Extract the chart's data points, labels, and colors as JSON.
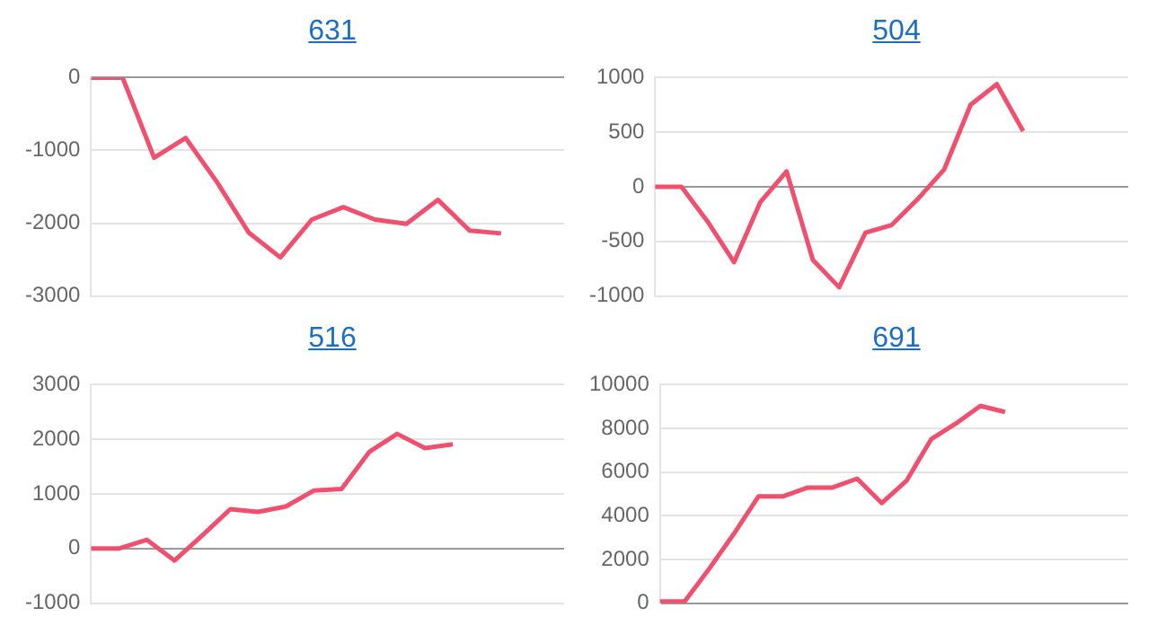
{
  "chart_data": [
    {
      "type": "line",
      "title": "631",
      "categories": [
        null,
        null,
        null,
        null,
        null,
        null,
        null,
        null,
        null,
        null,
        null,
        null,
        null,
        null,
        null,
        null
      ],
      "series": [
        {
          "color": "#f0506e",
          "values": [
            0,
            0,
            -1100,
            -830,
            -1440,
            -2130,
            -2470,
            -1950,
            -1780,
            -1950,
            -2010,
            -1680,
            -2100,
            -2140,
            null,
            null
          ]
        }
      ],
      "ylim": [
        -3000,
        0
      ],
      "yticks": [
        -3000,
        -2000,
        -1000,
        0
      ],
      "grid": "y",
      "legend": false,
      "tick_labels": "y",
      "marker": "none"
    },
    {
      "type": "line",
      "title": "504",
      "categories": [
        null,
        null,
        null,
        null,
        null,
        null,
        null,
        null,
        null,
        null,
        null,
        null,
        null,
        null,
        null,
        null,
        null,
        null,
        null
      ],
      "series": [
        {
          "color": "#f0506e",
          "values": [
            0,
            0,
            -320,
            -690,
            -140,
            140,
            -670,
            -920,
            -420,
            -350,
            -110,
            160,
            750,
            940,
            510,
            null,
            null,
            null,
            null
          ]
        }
      ],
      "ylim": [
        -1000,
        1000
      ],
      "yticks": [
        -1000,
        -500,
        0,
        500,
        1000
      ],
      "grid": "y",
      "legend": false,
      "tick_labels": "y",
      "marker": "none"
    },
    {
      "type": "line",
      "title": "516",
      "categories": [
        null,
        null,
        null,
        null,
        null,
        null,
        null,
        null,
        null,
        null,
        null,
        null,
        null,
        null,
        null,
        null,
        null,
        null
      ],
      "series": [
        {
          "color": "#f0506e",
          "values": [
            0,
            0,
            160,
            -220,
            240,
            720,
            670,
            770,
            1060,
            1090,
            1770,
            2100,
            1840,
            1910,
            null,
            null,
            null,
            null
          ]
        }
      ],
      "ylim": [
        -1000,
        3000
      ],
      "yticks": [
        -1000,
        0,
        1000,
        2000,
        3000
      ],
      "grid": "y",
      "legend": false,
      "tick_labels": "y",
      "marker": "none"
    },
    {
      "type": "line",
      "title": "691",
      "categories": [
        null,
        null,
        null,
        null,
        null,
        null,
        null,
        null,
        null,
        null,
        null,
        null,
        null,
        null,
        null,
        null,
        null,
        null,
        null,
        null
      ],
      "series": [
        {
          "color": "#f0506e",
          "values": [
            80,
            80,
            1580,
            3180,
            4890,
            4890,
            5290,
            5290,
            5700,
            4580,
            5600,
            7500,
            8220,
            9030,
            8750,
            null,
            null,
            null,
            null,
            null
          ]
        }
      ],
      "ylim": [
        0,
        10000
      ],
      "yticks": [
        0,
        2000,
        4000,
        6000,
        8000,
        10000
      ],
      "grid": "y",
      "legend": false,
      "tick_labels": "y",
      "marker": "none"
    }
  ]
}
